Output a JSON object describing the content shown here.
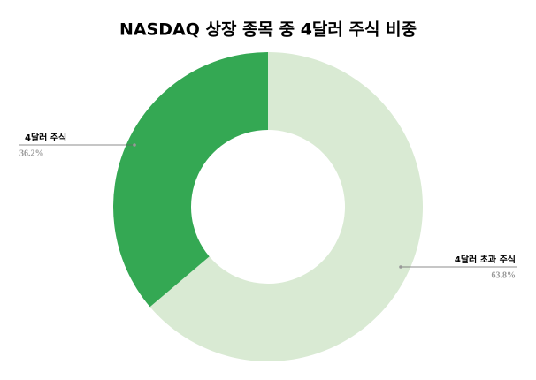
{
  "chart_data": {
    "type": "donut",
    "title": "NASDAQ 상장 종목 중 4달러 주식 비중",
    "categories": [
      "4달러 초과 주식",
      "4달러 주식"
    ],
    "values": [
      63.8,
      36.2
    ],
    "value_labels": [
      "63.8%",
      "36.2%"
    ],
    "colors": [
      "#d9ead3",
      "#34a853"
    ]
  }
}
